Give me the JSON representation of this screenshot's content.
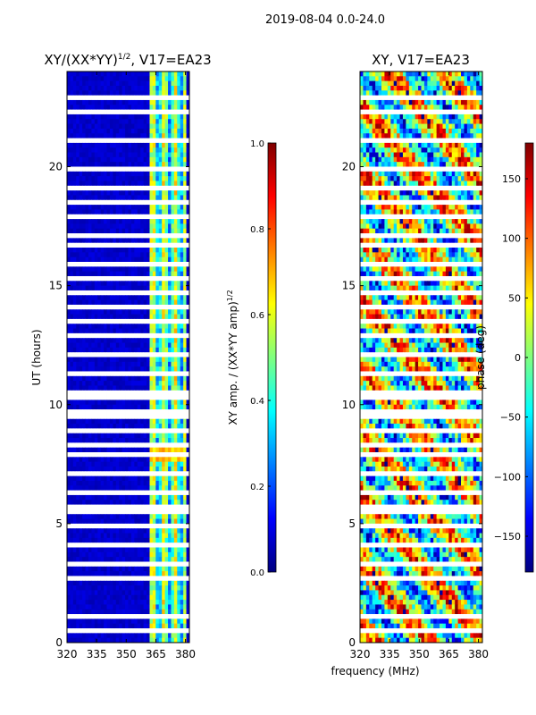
{
  "figure": {
    "suptitle": "2019-08-04 0.0-24.0",
    "common_xlabel": "frequency (MHz)"
  },
  "chart_data": [
    {
      "type": "heatmap",
      "title": "XY/(XX*YY)",
      "title_exponent": "1/2",
      "title_suffix": ", V17=EA23",
      "xlabel": "",
      "ylabel": "UT (hours)",
      "xlim": [
        320,
        382
      ],
      "ylim": [
        0,
        24
      ],
      "xticks": [
        320,
        335,
        350,
        365,
        380
      ],
      "yticks": [
        0,
        5,
        10,
        15,
        20
      ],
      "colorbar": {
        "label": "XY amp. / (XX*YY amp)",
        "label_exponent": "1/2",
        "range": [
          0.0,
          1.0
        ],
        "ticks": [
          "0.0",
          "0.2",
          "0.4",
          "0.6",
          "0.8",
          "1.0"
        ],
        "colormap": "jet"
      },
      "description_values": {
        "background_level": 0.05,
        "band_365_382_level": 0.45,
        "gap_rows_ut": [
          0.5,
          1.2,
          2.0,
          2.6,
          3.3,
          4.1,
          4.9,
          5.6,
          6.3,
          7.1,
          7.8,
          8.3,
          8.9,
          9.6,
          10.4,
          11.3,
          12.1,
          12.8,
          13.5,
          14.2,
          14.7,
          15.3,
          16.0,
          16.6,
          17.1,
          17.8,
          18.5,
          19.2,
          19.8,
          21.1,
          22.3,
          22.8
        ]
      }
    },
    {
      "type": "heatmap",
      "title": "XY, V17=EA23",
      "xlabel": "frequency (MHz)",
      "ylabel": "",
      "xlim": [
        320,
        382
      ],
      "ylim": [
        0,
        24
      ],
      "xticks": [
        320,
        335,
        350,
        365,
        380
      ],
      "yticks": [
        0,
        5,
        10,
        15,
        20
      ],
      "colorbar": {
        "label": "phase (deg)",
        "range": [
          -180,
          180
        ],
        "ticks": [
          "150",
          "100",
          "50",
          "0",
          "−50",
          "−100",
          "−150"
        ],
        "tick_values": [
          150,
          100,
          50,
          0,
          -50,
          -100,
          -150
        ],
        "colormap": "jet"
      }
    }
  ]
}
